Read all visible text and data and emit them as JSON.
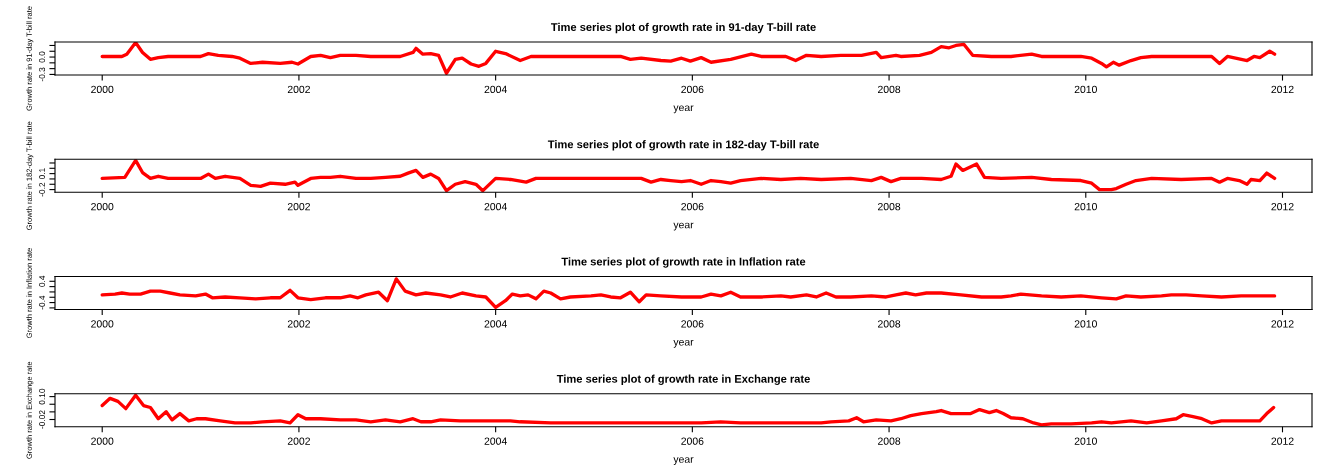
{
  "chart_data": [
    {
      "type": "line",
      "title": "Time series plot of growth rate in 91-day T-bill rate",
      "xlabel": "year",
      "ylabel": "Growth rate in 91-day T-bill rate",
      "xlim": [
        1999.52,
        2012.3
      ],
      "xticks": [
        2000,
        2002,
        2004,
        2006,
        2008,
        2010,
        2012
      ],
      "ylim": [
        -0.31,
        0.26
      ],
      "yticks": [
        {
          "value": -0.3,
          "label": "-0.3"
        },
        {
          "value": -0.2,
          "label": null
        },
        {
          "value": -0.1,
          "label": null
        },
        {
          "value": 0.0,
          "label": "0.0"
        },
        {
          "value": 0.1,
          "label": null
        },
        {
          "value": 0.2,
          "label": null
        }
      ],
      "grid": false,
      "line_style": "solid",
      "series": [
        {
          "color": "#ff0000",
          "x": [
            2000.0,
            2000.2,
            2000.25,
            2000.34,
            2000.41,
            2000.49,
            2000.57,
            2000.67,
            2001.0,
            2001.08,
            2001.18,
            2001.32,
            2001.4,
            2001.51,
            2001.63,
            2001.81,
            2001.93,
            2001.99,
            2002.12,
            2002.22,
            2002.32,
            2002.42,
            2002.58,
            2002.73,
            2002.88,
            2003.03,
            2003.16,
            2003.19,
            2003.26,
            2003.34,
            2003.42,
            2003.5,
            2003.59,
            2003.66,
            2003.75,
            2003.83,
            2003.9,
            2004.0,
            2004.1,
            2004.25,
            2004.36,
            2004.46,
            2004.66,
            2004.87,
            2005.07,
            2005.27,
            2005.37,
            2005.48,
            2005.68,
            2005.78,
            2005.89,
            2005.98,
            2006.09,
            2006.19,
            2006.39,
            2006.6,
            2006.7,
            2006.85,
            2006.95,
            2007.05,
            2007.16,
            2007.31,
            2007.51,
            2007.72,
            2007.87,
            2007.92,
            2008.07,
            2008.12,
            2008.31,
            2008.43,
            2008.53,
            2008.61,
            2008.68,
            2008.76,
            2008.85,
            2009.04,
            2009.24,
            2009.45,
            2009.55,
            2009.75,
            2009.95,
            2010.06,
            2010.16,
            2010.21,
            2010.28,
            2010.34,
            2010.46,
            2010.56,
            2010.67,
            2010.87,
            2011.18,
            2011.28,
            2011.36,
            2011.44,
            2011.64,
            2011.71,
            2011.77,
            2011.87,
            2011.92
          ],
          "values": [
            0.01,
            0.01,
            0.05,
            0.25,
            0.08,
            -0.04,
            -0.01,
            0.01,
            0.01,
            0.06,
            0.03,
            0.01,
            -0.02,
            -0.11,
            -0.09,
            -0.11,
            -0.09,
            -0.12,
            0.01,
            0.03,
            -0.01,
            0.03,
            0.03,
            0.01,
            0.01,
            0.01,
            0.08,
            0.15,
            0.05,
            0.06,
            0.03,
            -0.28,
            -0.04,
            -0.02,
            -0.12,
            -0.16,
            -0.11,
            0.1,
            0.06,
            -0.06,
            0.01,
            0.01,
            0.01,
            0.01,
            0.01,
            0.01,
            -0.04,
            -0.02,
            -0.06,
            -0.07,
            -0.02,
            -0.07,
            -0.01,
            -0.09,
            -0.04,
            0.05,
            0.01,
            0.01,
            0.01,
            -0.06,
            0.03,
            0.01,
            0.03,
            0.03,
            0.08,
            -0.01,
            0.03,
            0.01,
            0.03,
            0.08,
            0.18,
            0.16,
            0.2,
            0.22,
            0.03,
            0.01,
            0.01,
            0.05,
            0.01,
            0.01,
            0.01,
            -0.02,
            -0.11,
            -0.17,
            -0.09,
            -0.14,
            -0.06,
            -0.01,
            0.01,
            0.01,
            0.01,
            0.01,
            -0.11,
            0.01,
            -0.06,
            0.01,
            -0.01,
            0.1,
            0.05
          ]
        }
      ]
    },
    {
      "type": "line",
      "title": "Time series plot of growth rate in 182-day T-bill rate",
      "xlabel": "year",
      "ylabel": "Growth rate in 182-day T-bill rate",
      "xlim": [
        1999.52,
        2012.3
      ],
      "xticks": [
        2000,
        2002,
        2004,
        2006,
        2008,
        2010,
        2012
      ],
      "ylim": [
        -0.25,
        0.37
      ],
      "yticks": [
        {
          "value": -0.2,
          "label": "-0.2"
        },
        {
          "value": -0.1,
          "label": null
        },
        {
          "value": 0.0,
          "label": null
        },
        {
          "value": 0.1,
          "label": "0.1"
        },
        {
          "value": 0.2,
          "label": null
        },
        {
          "value": 0.3,
          "label": null
        }
      ],
      "grid": false,
      "line_style": "solid",
      "series": [
        {
          "color": "#ff0000",
          "x": [
            2000.0,
            2000.23,
            2000.34,
            2000.41,
            2000.49,
            2000.57,
            2000.67,
            2001.0,
            2001.08,
            2001.15,
            2001.25,
            2001.4,
            2001.51,
            2001.61,
            2001.71,
            2001.86,
            2001.96,
            2001.99,
            2002.12,
            2002.22,
            2002.32,
            2002.42,
            2002.58,
            2002.73,
            2002.88,
            2003.03,
            2003.11,
            2003.19,
            2003.26,
            2003.34,
            2003.42,
            2003.5,
            2003.59,
            2003.69,
            2003.8,
            2003.87,
            2004.0,
            2004.15,
            2004.31,
            2004.41,
            2004.66,
            2005.07,
            2005.48,
            2005.58,
            2005.68,
            2005.78,
            2005.89,
            2005.98,
            2006.09,
            2006.19,
            2006.29,
            2006.39,
            2006.49,
            2006.7,
            2006.9,
            2007.1,
            2007.31,
            2007.61,
            2007.82,
            2007.92,
            2008.02,
            2008.12,
            2008.33,
            2008.53,
            2008.63,
            2008.68,
            2008.75,
            2008.89,
            2008.97,
            2009.14,
            2009.45,
            2009.65,
            2009.95,
            2010.06,
            2010.14,
            2010.26,
            2010.31,
            2010.41,
            2010.51,
            2010.67,
            2010.97,
            2011.28,
            2011.36,
            2011.44,
            2011.56,
            2011.64,
            2011.68,
            2011.77,
            2011.84,
            2011.92
          ],
          "values": [
            0.01,
            0.03,
            0.35,
            0.12,
            0.01,
            0.05,
            0.01,
            0.01,
            0.09,
            0.01,
            0.05,
            0.01,
            -0.12,
            -0.14,
            -0.08,
            -0.1,
            -0.06,
            -0.12,
            0.01,
            0.03,
            0.03,
            0.05,
            0.01,
            0.01,
            0.03,
            0.05,
            0.11,
            0.16,
            0.03,
            0.09,
            0.01,
            -0.22,
            -0.1,
            -0.05,
            -0.1,
            -0.22,
            0.01,
            -0.01,
            -0.06,
            0.01,
            0.01,
            0.01,
            0.01,
            -0.06,
            -0.01,
            -0.03,
            -0.05,
            -0.03,
            -0.1,
            -0.03,
            -0.05,
            -0.08,
            -0.03,
            0.01,
            -0.01,
            0.01,
            -0.01,
            0.01,
            -0.03,
            0.03,
            -0.05,
            0.01,
            0.01,
            -0.01,
            0.05,
            0.28,
            0.16,
            0.28,
            0.03,
            0.01,
            0.03,
            -0.01,
            -0.03,
            -0.08,
            -0.2,
            -0.2,
            -0.18,
            -0.1,
            -0.03,
            0.01,
            -0.01,
            0.01,
            -0.06,
            0.01,
            -0.03,
            -0.1,
            -0.01,
            -0.03,
            0.11,
            0.01
          ]
        }
      ]
    },
    {
      "type": "line",
      "title": "Time series plot of growth rate in Inflation rate",
      "xlabel": "year",
      "ylabel": "Growth rate in Inflation rate",
      "xlim": [
        1999.52,
        2012.3
      ],
      "xticks": [
        2000,
        2002,
        2004,
        2006,
        2008,
        2010,
        2012
      ],
      "ylim": [
        -0.66,
        0.58
      ],
      "yticks": [
        {
          "value": -0.6,
          "label": null
        },
        {
          "value": -0.4,
          "label": "-0.4"
        },
        {
          "value": -0.2,
          "label": null
        },
        {
          "value": 0.0,
          "label": null
        },
        {
          "value": 0.2,
          "label": null
        },
        {
          "value": 0.4,
          "label": "0.4"
        }
      ],
      "grid": false,
      "line_style": "solid",
      "series": [
        {
          "color": "#ff0000",
          "x": [
            2000.0,
            2000.13,
            2000.2,
            2000.28,
            2000.39,
            2000.49,
            2000.59,
            2000.69,
            2000.79,
            2000.95,
            2001.05,
            2001.12,
            2001.25,
            2001.4,
            2001.56,
            2001.71,
            2001.81,
            2001.91,
            2001.99,
            2002.12,
            2002.27,
            2002.42,
            2002.52,
            2002.6,
            2002.68,
            2002.81,
            2002.9,
            2002.99,
            2003.08,
            2003.19,
            2003.29,
            2003.44,
            2003.54,
            2003.66,
            2003.8,
            2003.9,
            2004.0,
            2004.1,
            2004.17,
            2004.25,
            2004.33,
            2004.41,
            2004.49,
            2004.56,
            2004.66,
            2004.76,
            2004.97,
            2005.07,
            2005.17,
            2005.27,
            2005.37,
            2005.46,
            2005.53,
            2005.68,
            2005.89,
            2006.09,
            2006.19,
            2006.29,
            2006.39,
            2006.49,
            2006.7,
            2006.9,
            2007.0,
            2007.16,
            2007.26,
            2007.36,
            2007.46,
            2007.61,
            2007.82,
            2007.97,
            2008.07,
            2008.17,
            2008.27,
            2008.38,
            2008.53,
            2008.73,
            2008.94,
            2009.14,
            2009.24,
            2009.34,
            2009.55,
            2009.75,
            2009.95,
            2010.16,
            2010.31,
            2010.41,
            2010.56,
            2010.77,
            2010.87,
            2011.02,
            2011.18,
            2011.38,
            2011.58,
            2011.79,
            2011.92
          ],
          "values": [
            -0.11,
            -0.08,
            -0.04,
            -0.08,
            -0.08,
            0.03,
            0.03,
            -0.04,
            -0.11,
            -0.15,
            -0.08,
            -0.22,
            -0.19,
            -0.22,
            -0.26,
            -0.22,
            -0.22,
            0.06,
            -0.22,
            -0.29,
            -0.22,
            -0.22,
            -0.15,
            -0.22,
            -0.11,
            -0.01,
            -0.33,
            0.49,
            0.03,
            -0.11,
            -0.04,
            -0.11,
            -0.19,
            -0.04,
            -0.15,
            -0.19,
            -0.58,
            -0.33,
            -0.08,
            -0.15,
            -0.11,
            -0.26,
            0.03,
            -0.04,
            -0.26,
            -0.19,
            -0.15,
            -0.11,
            -0.19,
            -0.22,
            -0.01,
            -0.37,
            -0.11,
            -0.15,
            -0.19,
            -0.19,
            -0.08,
            -0.15,
            -0.01,
            -0.19,
            -0.19,
            -0.15,
            -0.19,
            -0.11,
            -0.19,
            -0.04,
            -0.19,
            -0.19,
            -0.15,
            -0.19,
            -0.11,
            -0.04,
            -0.11,
            -0.04,
            -0.04,
            -0.11,
            -0.19,
            -0.19,
            -0.15,
            -0.08,
            -0.15,
            -0.19,
            -0.15,
            -0.22,
            -0.26,
            -0.15,
            -0.19,
            -0.15,
            -0.11,
            -0.11,
            -0.15,
            -0.19,
            -0.15,
            -0.15,
            -0.15
          ]
        }
      ]
    },
    {
      "type": "line",
      "title": "Time series plot of growth rate in Exchange rate",
      "xlabel": "year",
      "ylabel": "Growth rate in Exchange rate",
      "xlim": [
        1999.52,
        2012.3
      ],
      "xticks": [
        2000,
        2002,
        2004,
        2006,
        2008,
        2010,
        2012
      ],
      "ylim": [
        -0.058,
        0.115
      ],
      "yticks": [
        {
          "value": -0.02,
          "label": "-0.02"
        },
        {
          "value": 0.02,
          "label": null
        },
        {
          "value": 0.06,
          "label": null
        },
        {
          "value": 0.1,
          "label": "0.10"
        }
      ],
      "grid": false,
      "line_style": "solid",
      "series": [
        {
          "color": "#ff0000",
          "x": [
            2000.0,
            2000.08,
            2000.16,
            2000.24,
            2000.34,
            2000.42,
            2000.49,
            2000.57,
            2000.65,
            2000.71,
            2000.79,
            2000.88,
            2000.96,
            2001.05,
            2001.2,
            2001.35,
            2001.51,
            2001.63,
            2001.81,
            2001.91,
            2001.99,
            2002.07,
            2002.22,
            2002.42,
            2002.58,
            2002.73,
            2002.88,
            2003.03,
            2003.16,
            2003.24,
            2003.34,
            2003.44,
            2003.64,
            2003.85,
            2004.05,
            2004.15,
            2004.25,
            2004.56,
            2004.87,
            2005.27,
            2005.68,
            2006.09,
            2006.29,
            2006.49,
            2006.7,
            2007.1,
            2007.31,
            2007.41,
            2007.59,
            2007.67,
            2007.74,
            2007.87,
            2008.02,
            2008.12,
            2008.22,
            2008.33,
            2008.48,
            2008.53,
            2008.63,
            2008.73,
            2008.83,
            2008.92,
            2009.02,
            2009.09,
            2009.16,
            2009.24,
            2009.36,
            2009.47,
            2009.55,
            2009.65,
            2009.85,
            2010.06,
            2010.16,
            2010.26,
            2010.46,
            2010.62,
            2010.77,
            2010.92,
            2010.99,
            2011.09,
            2011.18,
            2011.28,
            2011.38,
            2011.58,
            2011.77,
            2011.84,
            2011.91
          ],
          "values": [
            0.053,
            0.091,
            0.075,
            0.037,
            0.107,
            0.053,
            0.043,
            -0.016,
            0.021,
            -0.022,
            0.011,
            -0.027,
            -0.016,
            -0.016,
            -0.027,
            -0.038,
            -0.038,
            -0.032,
            -0.027,
            -0.038,
            0.005,
            -0.016,
            -0.016,
            -0.022,
            -0.022,
            -0.032,
            -0.022,
            -0.032,
            -0.016,
            -0.032,
            -0.032,
            -0.022,
            -0.027,
            -0.027,
            -0.027,
            -0.027,
            -0.032,
            -0.038,
            -0.038,
            -0.038,
            -0.038,
            -0.038,
            -0.032,
            -0.038,
            -0.038,
            -0.038,
            -0.038,
            -0.032,
            -0.027,
            -0.011,
            -0.032,
            -0.022,
            -0.027,
            -0.016,
            0.0,
            0.011,
            0.021,
            0.027,
            0.011,
            0.011,
            0.011,
            0.032,
            0.016,
            0.027,
            0.011,
            -0.011,
            -0.016,
            -0.038,
            -0.048,
            -0.043,
            -0.043,
            -0.038,
            -0.032,
            -0.038,
            -0.027,
            -0.038,
            -0.027,
            -0.016,
            0.005,
            -0.005,
            -0.016,
            -0.038,
            -0.027,
            -0.027,
            -0.027,
            0.011,
            0.043
          ]
        }
      ]
    }
  ]
}
